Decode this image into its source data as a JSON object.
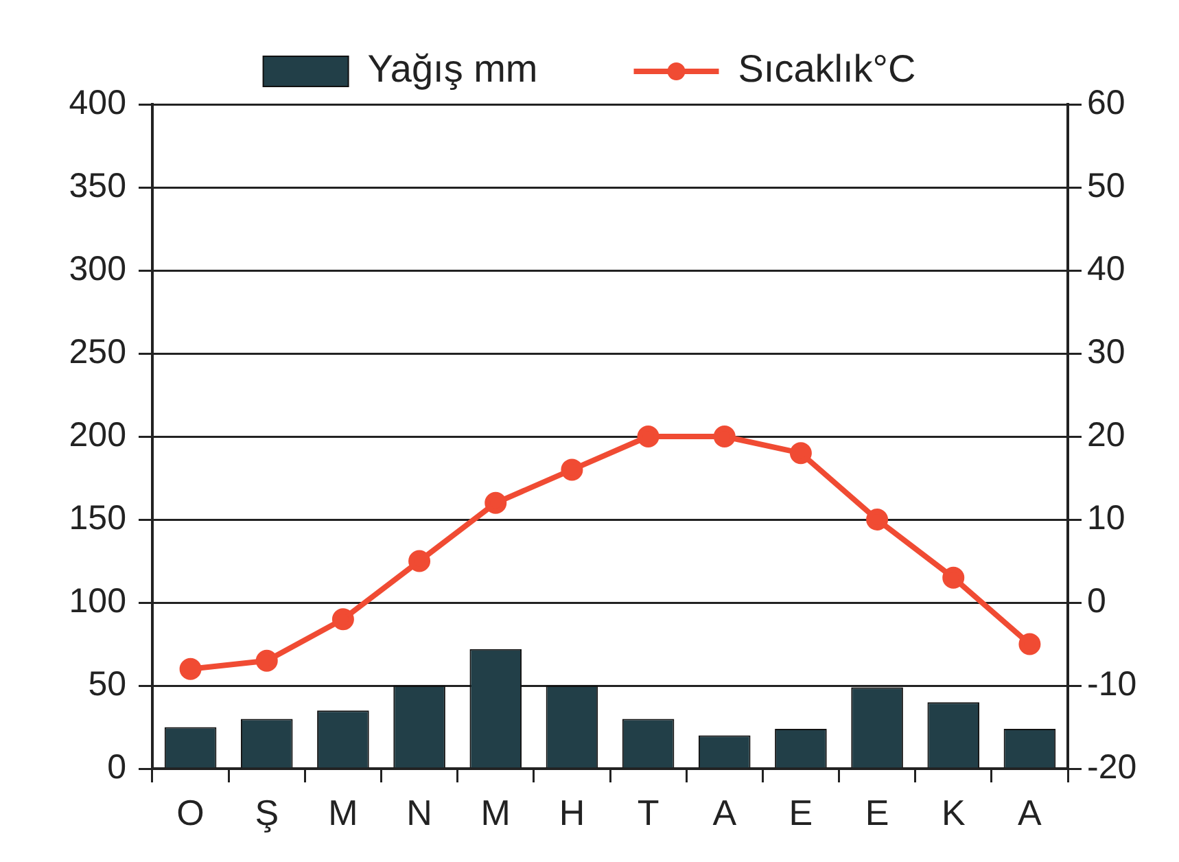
{
  "chart_data": {
    "type": "bar",
    "categories": [
      "O",
      "Ş",
      "M",
      "N",
      "M",
      "H",
      "T",
      "A",
      "E",
      "E",
      "K",
      "A"
    ],
    "series": [
      {
        "name": "Yağış mm",
        "color": "#223f48",
        "values": [
          25,
          30,
          35,
          50,
          72,
          50,
          30,
          20,
          24,
          49,
          40,
          24
        ]
      },
      {
        "name": "Sıcaklık°C",
        "type": "line",
        "axis": "y2",
        "color": "#f04b33",
        "values": [
          -8,
          -7,
          -2,
          5,
          12,
          16,
          20,
          20,
          18,
          10,
          3,
          -5
        ]
      }
    ],
    "ylim": [
      0,
      400
    ],
    "yticks": [
      0,
      50,
      100,
      150,
      200,
      250,
      300,
      350,
      400
    ],
    "y2lim": [
      -20,
      60
    ],
    "y2ticks": [
      -20,
      -10,
      0,
      10,
      20,
      30,
      40,
      50,
      60
    ],
    "grid": "y",
    "legend": "top",
    "marker": "circle",
    "line_style": "solid"
  }
}
